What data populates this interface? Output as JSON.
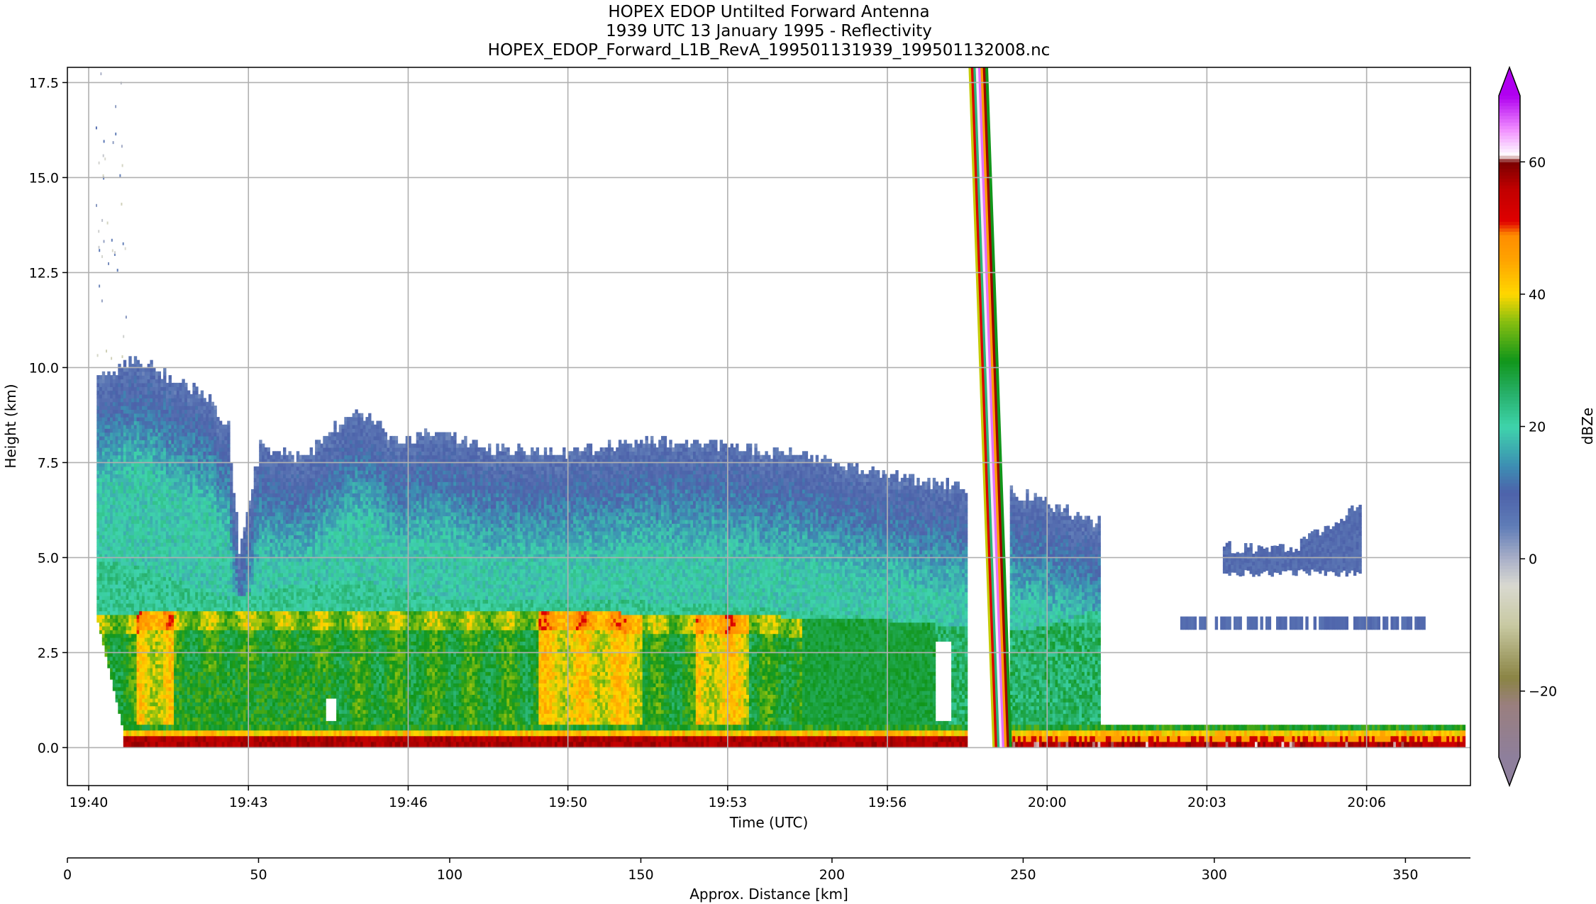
{
  "chart_data": {
    "type": "heatmap",
    "title_lines": [
      "HOPEX EDOP Untilted Forward Antenna",
      "1939 UTC 13 January 1995 - Reflectivity",
      "HOPEX_EDOP_Forward_L1B_RevA_199501131939_199501132008.nc"
    ],
    "xlabel": "Time (UTC)",
    "ylabel": "Height (km)",
    "x2label": "Approx. Distance [km]",
    "x_ticks": [
      {
        "t": 0.0,
        "label": "19:40"
      },
      {
        "t": 3.0,
        "label": "19:43"
      },
      {
        "t": 6.0,
        "label": "19:46"
      },
      {
        "t": 9.0,
        "label": "19:50"
      },
      {
        "t": 12.0,
        "label": "19:53"
      },
      {
        "t": 15.0,
        "label": "19:56"
      },
      {
        "t": 18.0,
        "label": "20:00"
      },
      {
        "t": 21.0,
        "label": "20:03"
      },
      {
        "t": 24.0,
        "label": "20:06"
      }
    ],
    "xlim": [
      -0.4,
      25.95
    ],
    "y_ticks": [
      0.0,
      2.5,
      5.0,
      7.5,
      10.0,
      12.5,
      15.0,
      17.5
    ],
    "y_tick_labels": [
      "0.0",
      "2.5",
      "5.0",
      "7.5",
      "10.0",
      "12.5",
      "15.0",
      "17.5"
    ],
    "ylim": [
      -1.0,
      17.9
    ],
    "x2_ticks": [
      0,
      50,
      100,
      150,
      200,
      250,
      300,
      350
    ],
    "x2lim": [
      0,
      367
    ],
    "grid": true,
    "colorbar": {
      "label": "dBZe",
      "range": [
        -30,
        70
      ],
      "ticks": [
        -20,
        0,
        20,
        40,
        60
      ],
      "tick_labels": [
        "−20",
        "0",
        "20",
        "40",
        "60"
      ],
      "stops": [
        {
          "v": -30,
          "c": "#8e7f9c"
        },
        {
          "v": -22,
          "c": "#9a7f7e"
        },
        {
          "v": -18,
          "c": "#8a8444"
        },
        {
          "v": -10,
          "c": "#c8c9a2"
        },
        {
          "v": -4,
          "c": "#d9d9d0"
        },
        {
          "v": 0,
          "c": "#aab0c8"
        },
        {
          "v": 5,
          "c": "#5f7cb7"
        },
        {
          "v": 10,
          "c": "#4d62aa"
        },
        {
          "v": 14,
          "c": "#3d8db3"
        },
        {
          "v": 20,
          "c": "#3ed4ab"
        },
        {
          "v": 25,
          "c": "#27b06a"
        },
        {
          "v": 30,
          "c": "#11961a"
        },
        {
          "v": 36,
          "c": "#8abf10"
        },
        {
          "v": 40,
          "c": "#ffd700"
        },
        {
          "v": 45,
          "c": "#ffa500"
        },
        {
          "v": 49,
          "c": "#ff8c00"
        },
        {
          "v": 51,
          "c": "#e00000"
        },
        {
          "v": 56,
          "c": "#c00000"
        },
        {
          "v": 60,
          "c": "#7a0000"
        },
        {
          "v": 61,
          "c": "#ffffff"
        },
        {
          "v": 65,
          "c": "#f08cff"
        },
        {
          "v": 70,
          "c": "#b000f0"
        }
      ]
    },
    "features": [
      {
        "name": "surface-echo-band",
        "region": "height 0-0.6 km",
        "dbz": 55,
        "t_range": [
          0.65,
          25.85
        ]
      },
      {
        "name": "bright-band-layer",
        "region": "height 2-3.6 km",
        "dbz": 40,
        "t_range": [
          1.0,
          15.0
        ]
      },
      {
        "name": "stratiform-anvil",
        "region": "height 4.5-9.5 km",
        "dbz": 10,
        "t_range": [
          0.2,
          19.0
        ]
      },
      {
        "name": "isolated-cloud-2003",
        "region": "height 4.5-6.3 km",
        "dbz": 8,
        "t_range": [
          21.3,
          23.9
        ]
      },
      {
        "name": "thin-layer-2003",
        "region": "height 3.1-3.5 km",
        "dbz": 8,
        "t_range": [
          20.5,
          25.1
        ]
      },
      {
        "name": "aircraft-turn-artifact",
        "region": "diagonal stripe",
        "dbz": 60,
        "t_range": [
          16.55,
          17.3
        ]
      }
    ]
  }
}
